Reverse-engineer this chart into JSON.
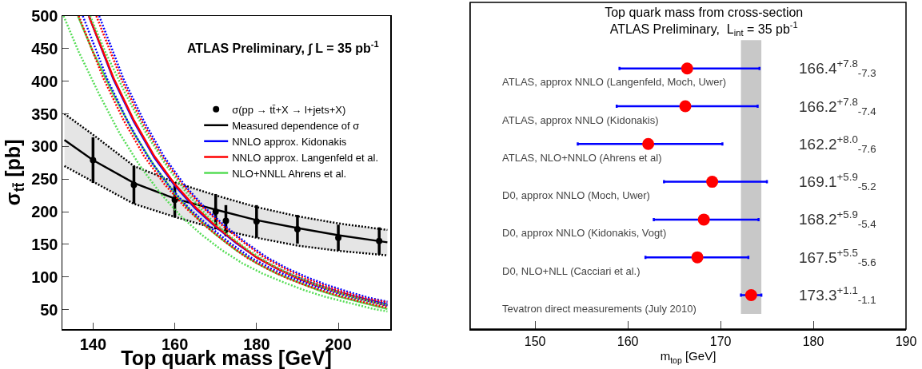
{
  "chart_data": [
    {
      "type": "line",
      "xlabel": "Top quark mass [GeV]",
      "ylabel": "σ$_{tt̄}$ [pb]",
      "annotations": [
        "ATLAS Preliminary, ∫ L = 35 pb$^{-1}$"
      ],
      "xlim": [
        132.5,
        212.7
      ],
      "ylim": [
        20,
        500
      ],
      "xticks": [
        140,
        160,
        180,
        200
      ],
      "yticks": [
        50,
        100,
        150,
        200,
        250,
        300,
        350,
        400,
        450,
        500
      ],
      "grid": false,
      "legend": "top right",
      "series": [
        {
          "type": "scatter",
          "name": "σ(pp → tt̄+X → l+jets+X)",
          "color": "#000000",
          "marker": "circle",
          "x": [
            140,
            150,
            160,
            170,
            172.5,
            180,
            190,
            200,
            210
          ],
          "values": [
            279,
            241,
            218,
            200,
            186,
            185,
            173,
            160,
            155
          ],
          "errors": [
            35,
            29,
            27,
            27,
            24,
            25,
            22,
            20,
            21
          ]
        },
        {
          "type": "line",
          "name": "Measured dependence of σ",
          "color": "#000000",
          "line_style": "solid",
          "x": [
            133,
            140,
            150,
            160,
            170,
            180,
            190,
            200,
            212
          ],
          "values": [
            310,
            279,
            244,
            220,
            203,
            187,
            175,
            164,
            153
          ],
          "lower": [
            270,
            246,
            212,
            192,
            174,
            160,
            148,
            140,
            133
          ],
          "upper": [
            350,
            318,
            270,
            245,
            225,
            207,
            193,
            182,
            172
          ]
        },
        {
          "type": "line",
          "color": "#000000",
          "line_style": "dotted",
          "x": [
            133,
            140,
            150,
            160,
            170,
            180,
            190,
            200,
            212
          ],
          "values": [
            270,
            246,
            212,
            192,
            174,
            160,
            148,
            140,
            133
          ]
        },
        {
          "type": "line",
          "color": "#000000",
          "line_style": "dotted",
          "x": [
            133,
            140,
            150,
            160,
            170,
            180,
            190,
            200,
            212
          ],
          "values": [
            350,
            318,
            270,
            245,
            225,
            207,
            193,
            182,
            172
          ]
        },
        {
          "type": "line",
          "name": "NNLO approx. Kidonakis",
          "color": "#0000ff",
          "line_style": "solid",
          "x": [
            139,
            145,
            150,
            155,
            160,
            165,
            170,
            175,
            180,
            185,
            190,
            195,
            200,
            205,
            212
          ],
          "values": [
            500,
            403,
            338,
            283,
            240,
            205,
            177,
            152,
            130,
            113,
            99,
            87,
            77,
            68,
            58
          ]
        },
        {
          "type": "line",
          "name": "NNLO approx. Langenfeld et al.",
          "color": "#ff0000",
          "line_style": "solid",
          "x": [
            139,
            145,
            150,
            155,
            160,
            165,
            170,
            175,
            180,
            185,
            190,
            195,
            200,
            205,
            212
          ],
          "values": [
            500,
            405,
            340,
            285,
            242,
            207,
            178,
            153,
            130,
            113,
            98,
            86,
            76,
            67,
            56
          ]
        },
        {
          "type": "line",
          "name": "NLO+NNLL Ahrens et al.",
          "color": "#55dd55",
          "line_style": "solid",
          "x": [
            136.3,
            140,
            145,
            150,
            155,
            160,
            165,
            170,
            175,
            180,
            185,
            190,
            195,
            200,
            205,
            212
          ],
          "values": [
            500,
            445,
            380,
            320,
            270,
            228,
            193,
            165,
            141,
            121,
            105,
            92,
            80,
            70,
            62,
            51
          ]
        },
        {
          "type": "line",
          "color": "#0000ff",
          "line_style": "dotted",
          "x": [
            141.5,
            147.5,
            152.5,
            157.5,
            162.5,
            167.5,
            172.5,
            177.5,
            182.5,
            187.5,
            192.5,
            197.5,
            202.5,
            207.5,
            212
          ],
          "values": [
            500,
            403,
            338,
            283,
            240,
            205,
            177,
            152,
            130,
            113,
            99,
            87,
            77,
            68,
            62
          ]
        },
        {
          "type": "line",
          "color": "#0000ff",
          "line_style": "dotted",
          "x": [
            137.5,
            143.5,
            148.5,
            153.5,
            158.5,
            163.5,
            168.5,
            173.5,
            178.5,
            183.5,
            188.5,
            193.5,
            198.5,
            203.5,
            210.5,
            212
          ],
          "values": [
            500,
            403,
            338,
            283,
            240,
            205,
            177,
            152,
            130,
            113,
            99,
            87,
            77,
            68,
            58,
            56
          ]
        },
        {
          "type": "line",
          "color": "#ff0000",
          "line_style": "dotted",
          "x": [
            140.8,
            146.8,
            151.8,
            156.8,
            161.8,
            166.8,
            171.8,
            176.8,
            181.8,
            186.8,
            191.8,
            196.8,
            201.8,
            206.8,
            212
          ],
          "values": [
            500,
            405,
            340,
            285,
            242,
            207,
            178,
            153,
            130,
            113,
            98,
            86,
            76,
            67,
            61
          ]
        },
        {
          "type": "line",
          "color": "#ff0000",
          "line_style": "dotted",
          "x": [
            136.5,
            142.5,
            147.5,
            152.5,
            157.5,
            162.5,
            167.5,
            172.5,
            177.5,
            182.5,
            187.5,
            192.5,
            197.5,
            202.5,
            209.5,
            212
          ],
          "values": [
            500,
            405,
            340,
            285,
            242,
            207,
            178,
            153,
            130,
            113,
            98,
            86,
            76,
            67,
            56,
            53
          ]
        },
        {
          "type": "line",
          "color": "#55dd55",
          "line_style": "dotted",
          "x": [
            139.3,
            143,
            148,
            153,
            158,
            163,
            168,
            173,
            178,
            183,
            188,
            193,
            198,
            203,
            208,
            212
          ],
          "values": [
            500,
            445,
            380,
            320,
            270,
            228,
            193,
            165,
            141,
            121,
            105,
            92,
            80,
            70,
            62,
            57
          ]
        },
        {
          "type": "line",
          "color": "#55dd55",
          "line_style": "dotted",
          "x": [
            132.8,
            136.5,
            141.5,
            146.5,
            151.5,
            156.5,
            161.5,
            166.5,
            171.5,
            176.5,
            181.5,
            186.5,
            191.5,
            196.5,
            201.5,
            208.5,
            212
          ],
          "values": [
            500,
            445,
            380,
            320,
            270,
            228,
            193,
            165,
            141,
            121,
            105,
            92,
            80,
            70,
            62,
            51,
            47
          ]
        }
      ]
    },
    {
      "type": "scatter",
      "orientation": "horizontal",
      "title": "Top quark mass from cross-section",
      "subtitle": "ATLAS Preliminary,  L$_{int}$ = 35 pb$^{-1}$",
      "xlabel": "m$_{top}$ [GeV]",
      "xlim": [
        143,
        190
      ],
      "xticks": [
        150,
        160,
        170,
        180,
        190
      ],
      "grid": false,
      "marker": "circle",
      "color": "#ff0000",
      "categories": [
        "ATLAS, approx NNLO (Langenfeld, Moch, Uwer)",
        "ATLAS, approx NNLO (Kidonakis)",
        "ATLAS, NLO+NNLO (Ahrens et al)",
        "D0, approx NNLO (Moch, Uwer)",
        "D0, approx NNLO (Kidonakis, Vogt)",
        "D0, NLO+NLL (Cacciari et al.)",
        "Tevatron direct measurements (July 2010)"
      ],
      "values": [
        166.4,
        166.2,
        162.2,
        169.1,
        168.2,
        167.5,
        173.3
      ],
      "errors": [
        [
          159.1,
          174.2
        ],
        [
          158.8,
          174.0
        ],
        [
          154.6,
          170.2
        ],
        [
          163.9,
          175.0
        ],
        [
          162.8,
          174.1
        ],
        [
          161.9,
          173.0
        ],
        [
          172.2,
          174.4
        ]
      ],
      "annotations": [
        "166.4$^{+7.8}$$_{-7.3}$",
        "166.2$^{+7.8}$$_{-7.4}$",
        "162.2$^{+8.0}$$_{-7.6}$",
        "169.1$^{+5.9}$$_{-5.2}$",
        "168.2$^{+5.9}$$_{-5.4}$",
        "167.5$^{+5.5}$$_{-5.6}$",
        "173.3$^{+1.1}$$_{-1.1}$"
      ],
      "bands": [
        {
          "axis": "x",
          "from": 172.2,
          "to": 174.4,
          "color": "#c8c8c8"
        }
      ]
    }
  ]
}
